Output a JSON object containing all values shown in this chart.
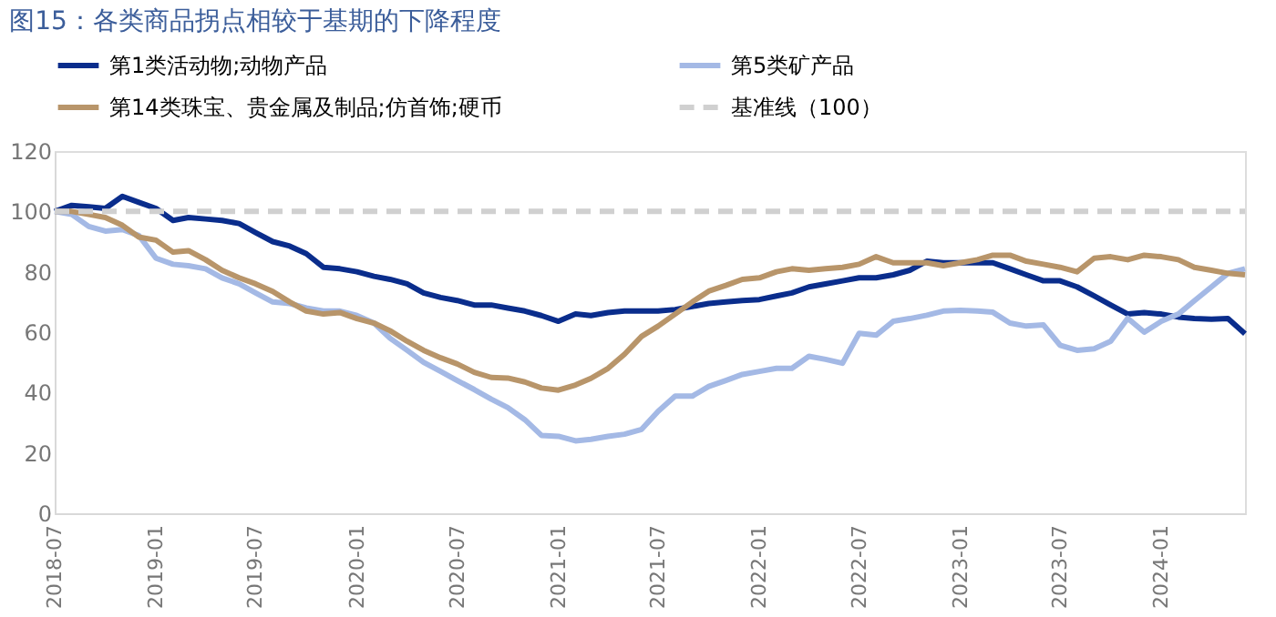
{
  "chart_data": {
    "type": "line",
    "title": "图15：各类商品拐点相较于基期的下降程度",
    "x": [
      "2018-07",
      "2018-08",
      "2018-09",
      "2018-10",
      "2018-11",
      "2018-12",
      "2019-01",
      "2019-02",
      "2019-03",
      "2019-04",
      "2019-05",
      "2019-06",
      "2019-07",
      "2019-08",
      "2019-09",
      "2019-10",
      "2019-11",
      "2019-12",
      "2020-01",
      "2020-02",
      "2020-03",
      "2020-04",
      "2020-05",
      "2020-06",
      "2020-07",
      "2020-08",
      "2020-09",
      "2020-10",
      "2020-11",
      "2020-12",
      "2021-01",
      "2021-02",
      "2021-03",
      "2021-04",
      "2021-05",
      "2021-06",
      "2021-07",
      "2021-08",
      "2021-09",
      "2021-10",
      "2021-11",
      "2021-12",
      "2022-01",
      "2022-02",
      "2022-03",
      "2022-04",
      "2022-05",
      "2022-06",
      "2022-07",
      "2022-08",
      "2022-09",
      "2022-10",
      "2022-11",
      "2022-12",
      "2023-01",
      "2023-02",
      "2023-03",
      "2023-04",
      "2023-05",
      "2023-06",
      "2023-07",
      "2023-08",
      "2023-09",
      "2023-10",
      "2023-11",
      "2023-12",
      "2024-01",
      "2024-02",
      "2024-03",
      "2024-04",
      "2024-05",
      "2024-06"
    ],
    "series": [
      {
        "name": "第1类活动物;动物产品",
        "color": "#0a2d8c",
        "values": [
          100,
          102,
          101.5,
          101,
          105,
          103,
          101,
          97,
          98,
          97.5,
          97,
          96,
          93,
          90,
          88.5,
          86,
          81.5,
          81,
          80,
          78.5,
          77.5,
          76,
          73,
          71.5,
          70.5,
          69,
          69,
          68,
          67,
          65.5,
          63.6,
          66,
          65.5,
          66.5,
          67,
          67,
          67,
          67.5,
          68.5,
          69.5,
          70,
          70.5,
          70.8,
          72,
          73,
          75,
          76,
          77,
          78,
          78,
          79,
          80.5,
          83.5,
          83,
          83,
          83,
          83,
          81,
          79,
          77,
          77,
          75,
          72,
          69,
          66,
          66.5,
          66,
          65,
          64.5,
          64.3,
          64.5,
          59.5
        ]
      },
      {
        "name": "第5类矿产品",
        "color": "#a4b9e5",
        "values": [
          100,
          99,
          95,
          93.5,
          94,
          92,
          84.5,
          82.5,
          82,
          81,
          78,
          76,
          73,
          70,
          69.5,
          68,
          67,
          67,
          65.5,
          63,
          58,
          54,
          50,
          47,
          44,
          41,
          37.8,
          35,
          31,
          25.8,
          25.5,
          24,
          24.5,
          25.5,
          26.2,
          27.8,
          33.8,
          38.8,
          38.8,
          42,
          44,
          46,
          47,
          48,
          48,
          52,
          51,
          49.7,
          59.6,
          59,
          63.6,
          64.5,
          65.6,
          67,
          67.2,
          67,
          66.6,
          63,
          62,
          62.4,
          55.7,
          54,
          54.5,
          57,
          64.6,
          60,
          63.6,
          66,
          70.4,
          75,
          79.5,
          81
        ]
      },
      {
        "name": "第14类珠宝、贵金属及制品;仿首饰;硬币",
        "color": "#b8956a",
        "values": [
          100,
          100,
          99,
          98,
          95.4,
          91.5,
          90.5,
          86.5,
          87,
          84,
          80.5,
          78,
          76,
          73.5,
          70,
          67,
          66,
          66.5,
          64.5,
          63,
          60.5,
          57,
          54,
          51.5,
          49.5,
          46.7,
          45,
          44.8,
          43.5,
          41.5,
          40.8,
          42.5,
          44.7,
          48,
          52.7,
          58.6,
          62,
          66,
          70,
          73.6,
          75.5,
          77.5,
          78,
          80,
          81,
          80.5,
          81,
          81.5,
          82.5,
          85,
          83,
          83,
          83,
          82,
          83,
          84,
          85.5,
          85.5,
          83.5,
          82.5,
          81.5,
          80,
          84.5,
          85,
          84,
          85.5,
          85,
          84,
          81.5,
          80.5,
          79.5,
          79
        ]
      }
    ],
    "ref_lines": [
      {
        "axis": "y",
        "value": 100,
        "label": "基准线（100）",
        "color": "#d0d0d0",
        "line_style": "dashed"
      }
    ],
    "xlim": [
      "2018-07",
      "2024-06"
    ],
    "xticks": [
      "2018-07",
      "2019-01",
      "2019-07",
      "2020-01",
      "2020-07",
      "2021-01",
      "2021-07",
      "2022-01",
      "2022-07",
      "2023-01",
      "2023-07",
      "2024-01"
    ],
    "ylim": [
      0,
      120
    ],
    "yticks": [
      0,
      20,
      40,
      60,
      80,
      100,
      120
    ],
    "grid": false,
    "legend": "top",
    "marker": "none",
    "line_style": "solid"
  }
}
